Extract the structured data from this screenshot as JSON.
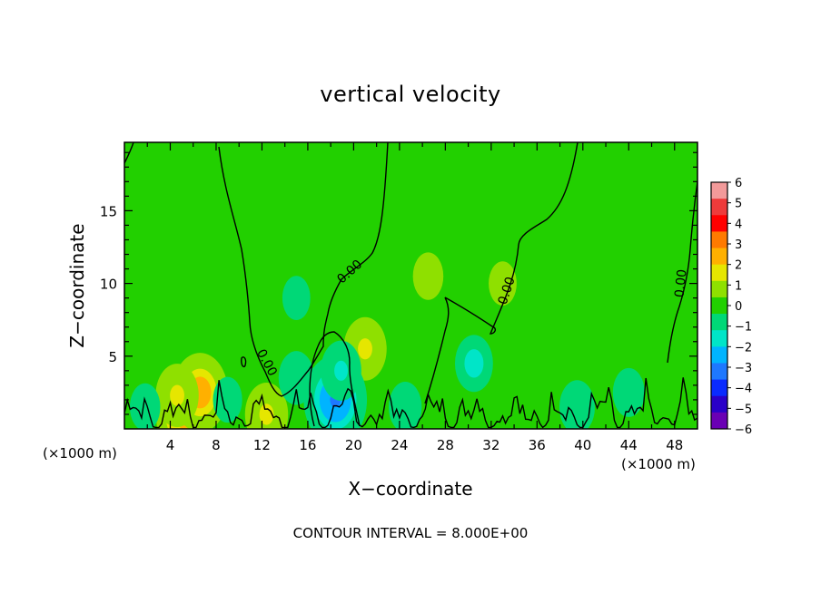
{
  "chart_data": {
    "type": "heatmap",
    "title": "vertical velocity",
    "xlabel": "X−coordinate",
    "ylabel": "Z−coordinate",
    "x_unit": "(×1000 m)",
    "y_unit": "(×1000 m)",
    "xlim": [
      0,
      50
    ],
    "ylim": [
      0,
      19.7
    ],
    "x_ticks": [
      4,
      8,
      12,
      16,
      20,
      24,
      28,
      32,
      36,
      40,
      44,
      48
    ],
    "x_tick_labels": [
      "4",
      "8",
      "12",
      "16",
      "20",
      "24",
      "28",
      "32",
      "36",
      "40",
      "44",
      "48"
    ],
    "y_ticks": [
      5,
      10,
      15
    ],
    "y_tick_labels": [
      "5",
      "10",
      "15"
    ],
    "colorbar": {
      "min": -6,
      "max": 6,
      "labels": [
        "6",
        "5",
        "4",
        "3",
        "2",
        "1",
        "0",
        "−1",
        "−2",
        "−3",
        "−4",
        "−5",
        "−6"
      ],
      "colors": [
        "#f29a9a",
        "#ee3b3b",
        "#ff0000",
        "#ff7a00",
        "#ffb000",
        "#e6e600",
        "#8fe000",
        "#22d000",
        "#00d877",
        "#00e5c8",
        "#00b4ff",
        "#1e78ff",
        "#0a2bff",
        "#2a00c8",
        "#6a00b4"
      ]
    },
    "contour_label": "0.00",
    "contour_interval_text": "CONTOUR INTERVAL = 8.000E+00",
    "features": [
      {
        "x": 5.3,
        "z": 0.9,
        "w": 2.8
      },
      {
        "x": 6.6,
        "z": 2.5,
        "w": 2.6
      },
      {
        "x": 4.6,
        "z": 2.3,
        "w": 1.6
      },
      {
        "x": 12.4,
        "z": 1.0,
        "w": 1.6
      },
      {
        "x": 21.0,
        "z": 5.5,
        "w": 1.6
      },
      {
        "x": 19.5,
        "z": 2.5,
        "w": 0.8
      },
      {
        "x": 26.5,
        "z": 10.5,
        "w": 0.6
      },
      {
        "x": 33.0,
        "z": 10.0,
        "w": 0.4
      },
      {
        "x": 18.4,
        "z": 2.0,
        "w": -3.2
      },
      {
        "x": 18.9,
        "z": 4.0,
        "w": -1.4
      },
      {
        "x": 15.0,
        "z": 3.5,
        "w": -1.0
      },
      {
        "x": 30.5,
        "z": 4.5,
        "w": -1.2
      },
      {
        "x": 24.5,
        "z": 1.5,
        "w": -0.8
      },
      {
        "x": 39.5,
        "z": 1.5,
        "w": -1.0
      },
      {
        "x": 44.0,
        "z": 2.5,
        "w": -0.7
      },
      {
        "x": 1.8,
        "z": 1.5,
        "w": -0.6
      },
      {
        "x": 9.0,
        "z": 2.0,
        "w": -0.5
      },
      {
        "x": 15.0,
        "z": 9.0,
        "w": -0.4
      }
    ]
  }
}
